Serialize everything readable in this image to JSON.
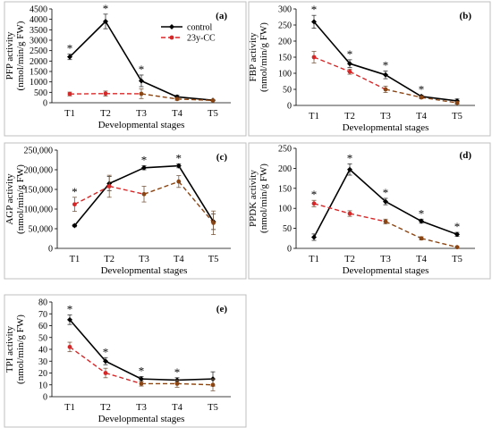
{
  "figure": {
    "legend": {
      "control_label": "control",
      "treated_label": "23y-CC"
    }
  },
  "series_style": {
    "control": {
      "color": "#000000",
      "dash": "solid",
      "marker": "diamond"
    },
    "treated": {
      "color_primary": "#d62728",
      "color_secondary": "#8b4513",
      "dash": "dashed",
      "marker": "circle"
    }
  },
  "chart_data": [
    {
      "type": "line",
      "panel": "(a)",
      "x": [
        "T1",
        "T2",
        "T3",
        "T4",
        "T5"
      ],
      "xlabel": "Developmental stages",
      "ylabel_lines": [
        "PFP activity",
        "(nmol/min/g FW)"
      ],
      "ylim": [
        0,
        4500
      ],
      "yticks": [
        "0",
        "500",
        "1000",
        "1500",
        "2000",
        "2500",
        "3000",
        "3500",
        "4000",
        "4500"
      ],
      "has_legend": true,
      "significance": [
        "T1",
        "T2",
        "T3"
      ],
      "series": [
        {
          "name": "control",
          "values": [
            2200,
            3900,
            1050,
            280,
            120
          ],
          "errors": [
            130,
            350,
            280,
            80,
            30
          ]
        },
        {
          "name": "23y-CC",
          "values": [
            420,
            440,
            430,
            180,
            110
          ],
          "errors": [
            90,
            120,
            230,
            60,
            30
          ]
        }
      ]
    },
    {
      "type": "line",
      "panel": "(b)",
      "x": [
        "T1",
        "T2",
        "T3",
        "T4",
        "T5"
      ],
      "xlabel": "Developmental stages",
      "ylabel_lines": [
        "FBP activity",
        "(nmol/min/g FW)"
      ],
      "ylim": [
        0,
        300
      ],
      "yticks": [
        "0",
        "50",
        "100",
        "150",
        "200",
        "250",
        "300"
      ],
      "has_legend": false,
      "significance": [
        "T1",
        "T2",
        "T3",
        "T4"
      ],
      "series": [
        {
          "name": "control",
          "values": [
            260,
            130,
            95,
            28,
            14
          ],
          "errors": [
            20,
            12,
            12,
            4,
            6
          ]
        },
        {
          "name": "23y-CC",
          "values": [
            150,
            105,
            50,
            25,
            8
          ],
          "errors": [
            18,
            8,
            10,
            4,
            4
          ]
        }
      ]
    },
    {
      "type": "line",
      "panel": "(c)",
      "x": [
        "T1",
        "T2",
        "T3",
        "T4",
        "T5"
      ],
      "xlabel": "Developmental stages",
      "ylabel_lines": [
        "AGP activity",
        "(nmol/min/g FW)"
      ],
      "ylim": [
        0,
        250000
      ],
      "yticks": [
        "0",
        "50,000",
        "100,000",
        "150,000",
        "200,000",
        "250,000"
      ],
      "has_legend": false,
      "significance": [
        "T1",
        "T3",
        "T4"
      ],
      "series": [
        {
          "name": "control",
          "values": [
            58000,
            165000,
            205000,
            210000,
            68000
          ],
          "errors": [
            3000,
            18000,
            5000,
            5000,
            20000
          ]
        },
        {
          "name": "23y-CC",
          "values": [
            112000,
            158000,
            138000,
            170000,
            65000
          ],
          "errors": [
            18000,
            28000,
            20000,
            15000,
            30000
          ]
        }
      ]
    },
    {
      "type": "line",
      "panel": "(d)",
      "x": [
        "T1",
        "T2",
        "T3",
        "T4",
        "T5"
      ],
      "xlabel": "Developmental stages",
      "ylabel_lines": [
        "PPDK activity",
        "(nmol/min/g FW)"
      ],
      "ylim": [
        0,
        250
      ],
      "yticks": [
        "0",
        "50",
        "100",
        "150",
        "200",
        "250"
      ],
      "has_legend": false,
      "significance": [
        "T1",
        "T2",
        "T3",
        "T4",
        "T5"
      ],
      "series": [
        {
          "name": "control",
          "values": [
            28,
            197,
            117,
            68,
            35
          ],
          "errors": [
            8,
            14,
            8,
            5,
            5
          ]
        },
        {
          "name": "23y-CC",
          "values": [
            112,
            87,
            67,
            25,
            3
          ],
          "errors": [
            8,
            7,
            6,
            4,
            2
          ]
        }
      ]
    },
    {
      "type": "line",
      "panel": "(e)",
      "x": [
        "T1",
        "T2",
        "T3",
        "T4",
        "T5"
      ],
      "xlabel": "Developmental stages",
      "ylabel_lines": [
        "TPI activity",
        "(nmol/min/g FW)"
      ],
      "ylim": [
        0,
        80
      ],
      "yticks": [
        "0",
        "10",
        "20",
        "30",
        "40",
        "50",
        "60",
        "70",
        "80"
      ],
      "has_legend": false,
      "significance": [
        "T1",
        "T2",
        "T3",
        "T4"
      ],
      "series": [
        {
          "name": "control",
          "values": [
            65,
            30,
            15,
            14,
            15
          ],
          "errors": [
            4,
            3,
            2,
            2,
            6
          ]
        },
        {
          "name": "23y-CC",
          "values": [
            42,
            20,
            11,
            11,
            10
          ],
          "errors": [
            4,
            4,
            2,
            3,
            5
          ]
        }
      ]
    }
  ]
}
